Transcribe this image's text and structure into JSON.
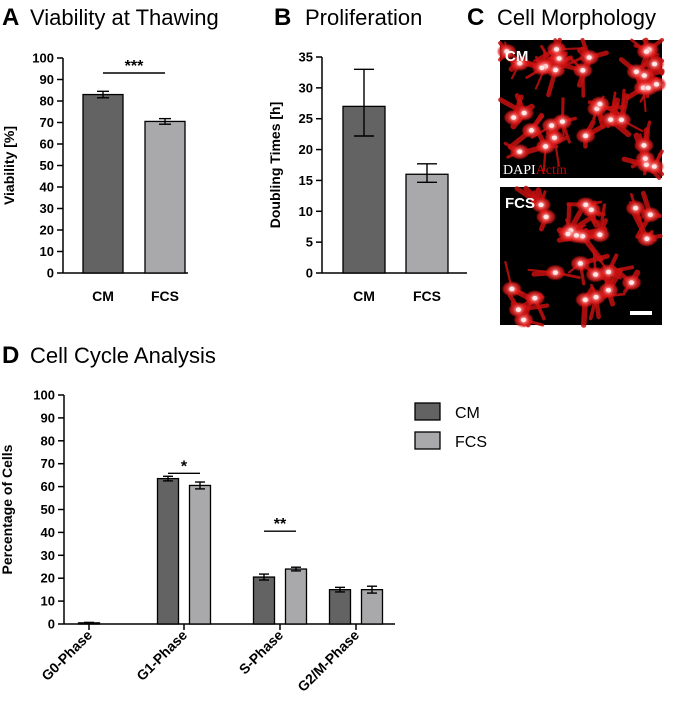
{
  "panels": {
    "A": {
      "letter": "A",
      "title": "Viability at Thawing"
    },
    "B": {
      "letter": "B",
      "title": "Proliferation"
    },
    "C": {
      "letter": "C",
      "title": "Cell Morphology"
    },
    "D": {
      "letter": "D",
      "title": "Cell Cycle Analysis"
    }
  },
  "images": {
    "top_label": "CM",
    "bottom_label": "FCS",
    "stain_dapi": "DAPI",
    "stain_actin": "Actin",
    "stain_dapi_color": "#ffffff",
    "stain_actin_color": "#d40000"
  },
  "colors": {
    "cm": "#636363",
    "fcs": "#a9a9ab"
  },
  "chart_data": [
    {
      "id": "A",
      "type": "bar",
      "categories": [
        "CM",
        "FCS"
      ],
      "values": [
        83,
        70.5
      ],
      "errors": [
        1.5,
        1.3
      ],
      "ylabel": "Viability [%]",
      "ylim": [
        0,
        100
      ],
      "yticks": [
        0,
        10,
        20,
        30,
        40,
        50,
        60,
        70,
        80,
        90,
        100
      ],
      "significance": [
        {
          "from": 0,
          "to": 1,
          "label": "***"
        }
      ]
    },
    {
      "id": "B",
      "type": "bar",
      "categories": [
        "CM",
        "FCS"
      ],
      "values": [
        27,
        16
      ],
      "err_low": [
        4.8,
        1.3
      ],
      "err_high": [
        6.0,
        1.7
      ],
      "ylabel": "Doubling  Times [h]",
      "ylim": [
        0,
        35
      ],
      "yticks": [
        0,
        5,
        10,
        15,
        20,
        25,
        30,
        35
      ]
    },
    {
      "id": "D",
      "type": "bar",
      "categories": [
        "G0-Phase",
        "G1-Phase",
        "S-Phase",
        "G2/M-Phase"
      ],
      "series": [
        {
          "name": "CM",
          "values": [
            0.5,
            63.5,
            20.5,
            15
          ],
          "errors": [
            0.2,
            1.0,
            1.3,
            1.0
          ]
        },
        {
          "name": "FCS",
          "values": [
            0,
            60.5,
            24,
            15
          ],
          "errors": [
            0,
            1.5,
            0.8,
            1.5
          ]
        }
      ],
      "ylabel": "Percentage of Cells",
      "ylim": [
        0,
        100
      ],
      "yticks": [
        0,
        10,
        20,
        30,
        40,
        50,
        60,
        70,
        80,
        90,
        100
      ],
      "legend_position": "top-right",
      "significance": [
        {
          "category": 1,
          "label": "*"
        },
        {
          "category": 2,
          "label": "**"
        }
      ]
    }
  ]
}
